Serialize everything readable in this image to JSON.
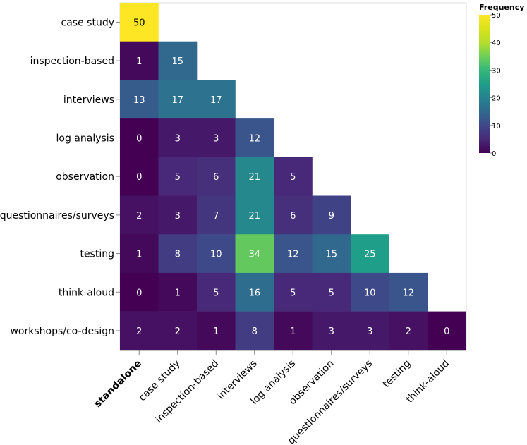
{
  "chart_data": {
    "type": "heatmap",
    "row_categories": [
      "case study",
      "inspection-based",
      "interviews",
      "log analysis",
      "observation",
      "questionnaires/surveys",
      "testing",
      "think-aloud",
      "workshops/co-design"
    ],
    "col_categories": [
      "standalone",
      "case study",
      "inspection-based",
      "interviews",
      "log analysis",
      "observation",
      "questionnaires/surveys",
      "testing",
      "think-aloud"
    ],
    "highlighted_column": "standalone",
    "values": [
      [
        50
      ],
      [
        1,
        15
      ],
      [
        13,
        17,
        17
      ],
      [
        0,
        3,
        3,
        12
      ],
      [
        0,
        5,
        6,
        21,
        5
      ],
      [
        2,
        3,
        7,
        21,
        6,
        9
      ],
      [
        1,
        8,
        10,
        34,
        12,
        15,
        25
      ],
      [
        0,
        1,
        5,
        16,
        5,
        5,
        10,
        12
      ],
      [
        2,
        2,
        1,
        8,
        1,
        3,
        3,
        2,
        0
      ]
    ],
    "color_scale": {
      "title": "Frequency",
      "scheme": "viridis",
      "domain": [
        0,
        50
      ],
      "ticks": [
        0,
        10,
        20,
        30,
        40,
        50
      ]
    }
  }
}
